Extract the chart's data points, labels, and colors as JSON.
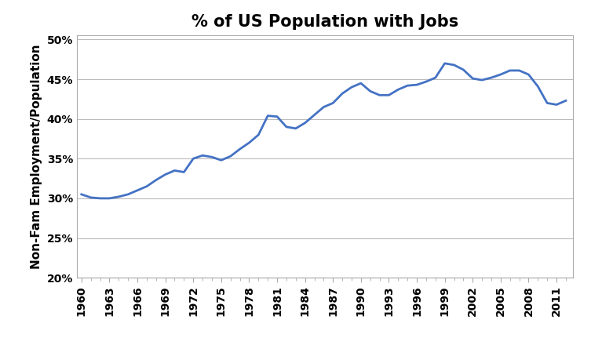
{
  "title": "% of US Population with Jobs",
  "ylabel": "Non-Fam Employment/Population",
  "years": [
    1960,
    1961,
    1962,
    1963,
    1964,
    1965,
    1966,
    1967,
    1968,
    1969,
    1970,
    1971,
    1972,
    1973,
    1974,
    1975,
    1976,
    1977,
    1978,
    1979,
    1980,
    1981,
    1982,
    1983,
    1984,
    1985,
    1986,
    1987,
    1988,
    1989,
    1990,
    1991,
    1992,
    1993,
    1994,
    1995,
    1996,
    1997,
    1998,
    1999,
    2000,
    2001,
    2002,
    2003,
    2004,
    2005,
    2006,
    2007,
    2008,
    2009,
    2010,
    2011,
    2012
  ],
  "values": [
    0.305,
    0.301,
    0.3,
    0.3,
    0.302,
    0.305,
    0.31,
    0.315,
    0.323,
    0.33,
    0.335,
    0.333,
    0.35,
    0.354,
    0.352,
    0.348,
    0.353,
    0.362,
    0.37,
    0.38,
    0.404,
    0.403,
    0.39,
    0.388,
    0.395,
    0.405,
    0.415,
    0.42,
    0.432,
    0.44,
    0.445,
    0.435,
    0.43,
    0.43,
    0.437,
    0.442,
    0.443,
    0.447,
    0.452,
    0.47,
    0.468,
    0.462,
    0.451,
    0.449,
    0.452,
    0.456,
    0.461,
    0.461,
    0.456,
    0.441,
    0.42,
    0.418,
    0.423
  ],
  "line_color": "#4472C4",
  "line_width": 2.0,
  "ylim": [
    0.2,
    0.505
  ],
  "yticks": [
    0.2,
    0.25,
    0.3,
    0.35,
    0.4,
    0.45,
    0.5
  ],
  "xticks": [
    1960,
    1963,
    1966,
    1969,
    1972,
    1975,
    1978,
    1981,
    1984,
    1987,
    1990,
    1993,
    1996,
    1999,
    2002,
    2005,
    2008,
    2011
  ],
  "all_years": [
    1960,
    1961,
    1962,
    1963,
    1964,
    1965,
    1966,
    1967,
    1968,
    1969,
    1970,
    1971,
    1972,
    1973,
    1974,
    1975,
    1976,
    1977,
    1978,
    1979,
    1980,
    1981,
    1982,
    1983,
    1984,
    1985,
    1986,
    1987,
    1988,
    1989,
    1990,
    1991,
    1992,
    1993,
    1994,
    1995,
    1996,
    1997,
    1998,
    1999,
    2000,
    2001,
    2002,
    2003,
    2004,
    2005,
    2006,
    2007,
    2008,
    2009,
    2010,
    2011,
    2012
  ],
  "grid_color": "#BBBBBB",
  "spine_color": "#AAAAAA",
  "background_color": "#FFFFFF",
  "title_fontsize": 15,
  "tick_fontsize": 10,
  "axis_label_fontsize": 11
}
